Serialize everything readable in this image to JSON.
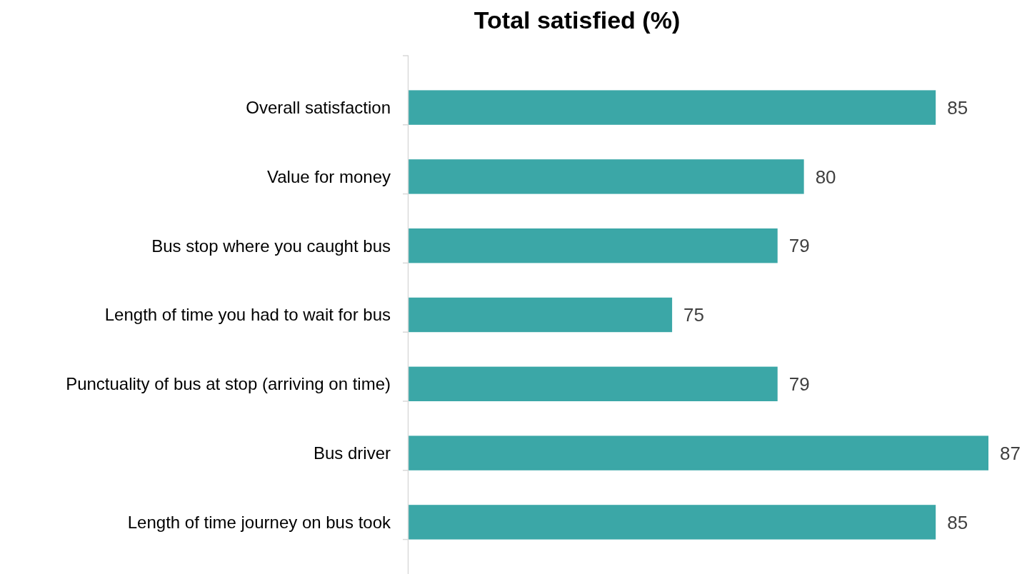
{
  "chart_data": {
    "type": "bar",
    "orientation": "horizontal",
    "title": "Total satisfied (%)",
    "categories": [
      "Overall satisfaction",
      "Value for money",
      "Bus stop where you caught bus",
      "Length of time you had to wait for bus",
      "Punctuality of bus at stop (arriving on time)",
      "Bus driver",
      "Length of time journey on bus took"
    ],
    "values": [
      85,
      80,
      79,
      75,
      79,
      87,
      85
    ],
    "color": "#3ba7a7",
    "xlim": [
      65,
      87
    ],
    "data_labels": true
  }
}
